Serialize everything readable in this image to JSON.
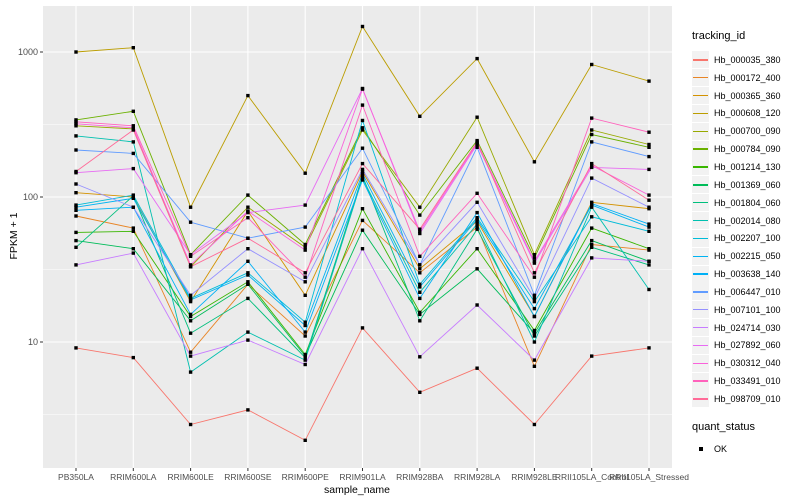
{
  "chart_data": {
    "type": "line",
    "xlabel": "sample_name",
    "ylabel": "FPKM + 1",
    "y_scale": "log10",
    "panel_color": "#EBEBEB",
    "grid_color": "#FFFFFF",
    "point_color": "#000000",
    "axis_text_color": "#4d4d4d",
    "ylim": [
      1.4,
      2000
    ],
    "y_ticks": [
      10,
      100,
      1000
    ],
    "y_tick_labels": [
      "10",
      "100",
      "1000"
    ],
    "categories": [
      "PB350LA",
      "RRIM600LA",
      "RRIM600LE",
      "RRIM600SE",
      "RRIM600PE",
      "RRIM901LA",
      "RRIM928BA",
      "RRIM928LA",
      "RRIM928LE",
      "RRII105LA_Control",
      "RRII105LA_Stressed"
    ],
    "legend": {
      "color_title": "tracking_id",
      "shape_title": "quant_status",
      "shape_items": [
        {
          "label": "OK"
        }
      ]
    },
    "series": [
      {
        "name": "Hb_000035_380",
        "color": "#F8766D",
        "values": [
          9.1,
          7.8,
          2.7,
          3.4,
          2.1,
          12.5,
          4.5,
          6.6,
          2.7,
          8,
          9.1
        ]
      },
      {
        "name": "Hb_000172_400",
        "color": "#E88526",
        "values": [
          74,
          61,
          8.5,
          25,
          11,
          69,
          30,
          62,
          6.8,
          47,
          43
        ]
      },
      {
        "name": "Hb_000365_360",
        "color": "#D39200",
        "values": [
          107,
          100,
          19,
          80,
          21,
          150,
          32,
          68,
          15,
          92,
          83
        ]
      },
      {
        "name": "Hb_000608_120",
        "color": "#BB9D00",
        "values": [
          1000,
          1070,
          85,
          500,
          146,
          1500,
          360,
          900,
          175,
          820,
          630
        ]
      },
      {
        "name": "Hb_000700_090",
        "color": "#97A900",
        "values": [
          310,
          295,
          33,
          85,
          45,
          290,
          85,
          355,
          40,
          290,
          230
        ]
      },
      {
        "name": "Hb_000784_090",
        "color": "#6BB100",
        "values": [
          340,
          390,
          40,
          103,
          47,
          300,
          75,
          245,
          38,
          270,
          220
        ]
      },
      {
        "name": "Hb_001214_130",
        "color": "#39B600",
        "values": [
          57,
          58,
          15,
          26,
          8.2,
          83,
          16,
          44,
          12,
          61,
          44
        ]
      },
      {
        "name": "Hb_001369_060",
        "color": "#00BC59",
        "values": [
          50,
          44,
          14,
          25,
          8,
          59,
          15.5,
          32,
          11.5,
          50,
          36
        ]
      },
      {
        "name": "Hb_001804_060",
        "color": "#00BF7D",
        "values": [
          45,
          102,
          11.5,
          20,
          7.8,
          140,
          14,
          60,
          11,
          45,
          34
        ]
      },
      {
        "name": "Hb_002014_080",
        "color": "#00C0AF",
        "values": [
          264,
          240,
          6.2,
          11.7,
          7.5,
          135,
          22,
          65,
          10,
          85,
          23
        ]
      },
      {
        "name": "Hb_002207_100",
        "color": "#00BCD8",
        "values": [
          88,
          103,
          20,
          30,
          13.7,
          337,
          25,
          72,
          19,
          73,
          58
        ]
      },
      {
        "name": "Hb_002215_050",
        "color": "#00B3F2",
        "values": [
          85,
          98,
          19.5,
          29,
          13,
          145,
          24,
          70,
          17,
          88,
          62
        ]
      },
      {
        "name": "Hb_003638_140",
        "color": "#00B0F6",
        "values": [
          81,
          85,
          15.5,
          36,
          11.7,
          131,
          20,
          78,
          15,
          90,
          65
        ]
      },
      {
        "name": "Hb_006447_010",
        "color": "#619CFF",
        "values": [
          211,
          200,
          67,
          52,
          62,
          217,
          34,
          220,
          21,
          240,
          190
        ]
      },
      {
        "name": "Hb_007101_100",
        "color": "#9590FF",
        "values": [
          123,
          85,
          21,
          44,
          26,
          155,
          34,
          92,
          20,
          135,
          85
        ]
      },
      {
        "name": "Hb_024714_030",
        "color": "#C77CFF",
        "values": [
          34,
          41,
          8,
          10.3,
          7,
          44,
          7.9,
          18,
          7.5,
          38,
          36
        ]
      },
      {
        "name": "Hb_027892_060",
        "color": "#E76BF3",
        "values": [
          147,
          157,
          40,
          78,
          88,
          560,
          56,
          230,
          35,
          160,
          155
        ]
      },
      {
        "name": "Hb_030312_040",
        "color": "#FA62DB",
        "values": [
          320,
          300,
          34,
          80,
          43,
          555,
          58,
          235,
          36,
          165,
          103
        ]
      },
      {
        "name": "Hb_033491_010",
        "color": "#FF62BC",
        "values": [
          330,
          310,
          39,
          72,
          28,
          430,
          39,
          106,
          28,
          350,
          280
        ]
      },
      {
        "name": "Hb_098709_010",
        "color": "#FF6A98",
        "values": [
          150,
          290,
          33,
          52,
          30,
          170,
          60,
          240,
          30,
          170,
          95
        ]
      }
    ]
  }
}
